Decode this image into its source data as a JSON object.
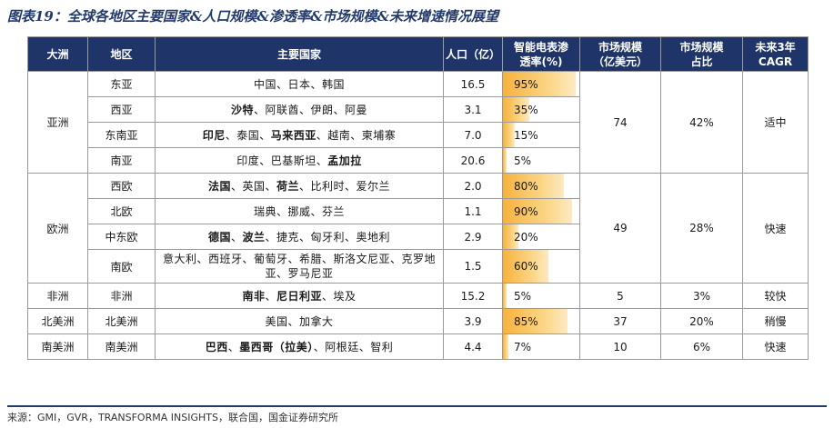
{
  "title": "图表19：全球各地区主要国家&人口规模&渗透率&市场规模&未来增速情况展望",
  "headers": {
    "continent": "大洲",
    "region": "地区",
    "countries": "主要国家",
    "population": "人口（亿）",
    "penetration_1": "智能电表渗",
    "penetration_2": "透率(%)",
    "market_1": "市场规模",
    "market_2": "（亿美元）",
    "share_1": "市场规模",
    "share_2": "占比",
    "cagr_1": "未来3年",
    "cagr_2": "CAGR"
  },
  "groups": [
    {
      "continent": "亚洲",
      "market": "74",
      "share": "42%",
      "cagr": "适中",
      "rows": [
        {
          "region": "东亚",
          "countries": [
            {
              "t": "中国、日本、韩国",
              "b": false
            }
          ],
          "population": "16.5",
          "penetration": "95%",
          "pen_value": 95
        },
        {
          "region": "西亚",
          "countries": [
            {
              "t": "沙特",
              "b": true
            },
            {
              "t": "、阿联酋、伊朗、阿曼",
              "b": false
            }
          ],
          "population": "3.1",
          "penetration": "35%",
          "pen_value": 35
        },
        {
          "region": "东南亚",
          "countries": [
            {
              "t": "印尼",
              "b": true
            },
            {
              "t": "、泰国、",
              "b": false
            },
            {
              "t": "马来西亚",
              "b": true
            },
            {
              "t": "、越南、柬埔寨",
              "b": false
            }
          ],
          "population": "7.0",
          "penetration": "15%",
          "pen_value": 15
        },
        {
          "region": "南亚",
          "countries": [
            {
              "t": "印度、巴基斯坦、",
              "b": false
            },
            {
              "t": "孟加拉",
              "b": true
            }
          ],
          "population": "20.6",
          "penetration": "5%",
          "pen_value": 5
        }
      ]
    },
    {
      "continent": "欧洲",
      "market": "49",
      "share": "28%",
      "cagr": "快速",
      "rows": [
        {
          "region": "西欧",
          "countries": [
            {
              "t": "法国",
              "b": true
            },
            {
              "t": "、英国、",
              "b": false
            },
            {
              "t": "荷兰",
              "b": true
            },
            {
              "t": "、比利时、爱尔兰",
              "b": false
            }
          ],
          "population": "2.0",
          "penetration": "80%",
          "pen_value": 80
        },
        {
          "region": "北欧",
          "countries": [
            {
              "t": "瑞典、挪威、芬兰",
              "b": false
            }
          ],
          "population": "1.1",
          "penetration": "90%",
          "pen_value": 90
        },
        {
          "region": "中东欧",
          "countries": [
            {
              "t": "德国",
              "b": true
            },
            {
              "t": "、",
              "b": false
            },
            {
              "t": "波兰",
              "b": true
            },
            {
              "t": "、捷克、匈牙利、奥地利",
              "b": false
            }
          ],
          "population": "2.9",
          "penetration": "20%",
          "pen_value": 20
        },
        {
          "region": "南欧",
          "countries": [
            {
              "t": "意大利、西班牙、葡萄牙、希腊、斯洛文尼亚、克罗地亚、罗马尼亚",
              "b": false
            }
          ],
          "population": "1.5",
          "penetration": "60%",
          "pen_value": 60
        }
      ]
    },
    {
      "continent": "非洲",
      "market": "5",
      "share": "3%",
      "cagr": "较快",
      "rows": [
        {
          "region": "非洲",
          "countries": [
            {
              "t": "南非",
              "b": true
            },
            {
              "t": "、",
              "b": false
            },
            {
              "t": "尼日利亚",
              "b": true
            },
            {
              "t": "、埃及",
              "b": false
            }
          ],
          "population": "15.2",
          "penetration": "5%",
          "pen_value": 5
        }
      ]
    },
    {
      "continent": "北美洲",
      "market": "37",
      "share": "20%",
      "cagr": "稍慢",
      "rows": [
        {
          "region": "北美洲",
          "countries": [
            {
              "t": "美国、加拿大",
              "b": false
            }
          ],
          "population": "3.9",
          "penetration": "85%",
          "pen_value": 85
        }
      ]
    },
    {
      "continent": "南美洲",
      "market": "10",
      "share": "6%",
      "cagr": "快速",
      "rows": [
        {
          "region": "南美洲",
          "countries": [
            {
              "t": "巴西",
              "b": true
            },
            {
              "t": "、",
              "b": false
            },
            {
              "t": "墨西哥（拉美）",
              "b": true
            },
            {
              "t": "、阿根廷、智利",
              "b": false
            }
          ],
          "population": "4.4",
          "penetration": "7%",
          "pen_value": 7
        }
      ]
    }
  ],
  "source": "来源：GMI，GVR，TRANSFORMA INSIGHTS，联合国，国金证券研究所"
}
